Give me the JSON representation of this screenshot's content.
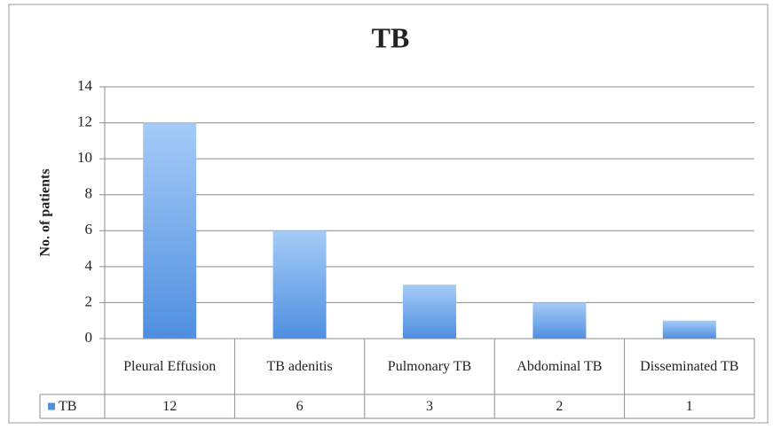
{
  "chart_data": {
    "type": "bar",
    "title": "TB",
    "y_label": "No. of patients",
    "categories": [
      "Pleural Effusion",
      "TB adenitis",
      "Pulmonary TB",
      "Abdominal TB",
      "Disseminated TB"
    ],
    "series": [
      {
        "name": "TB",
        "color": "#4f8fe0",
        "values": [
          12,
          6,
          3,
          2,
          1
        ]
      }
    ],
    "ylim": [
      0,
      14
    ],
    "yticks": [
      0,
      2,
      4,
      6,
      8,
      10,
      12,
      14
    ],
    "grid": true,
    "data_table": true
  }
}
